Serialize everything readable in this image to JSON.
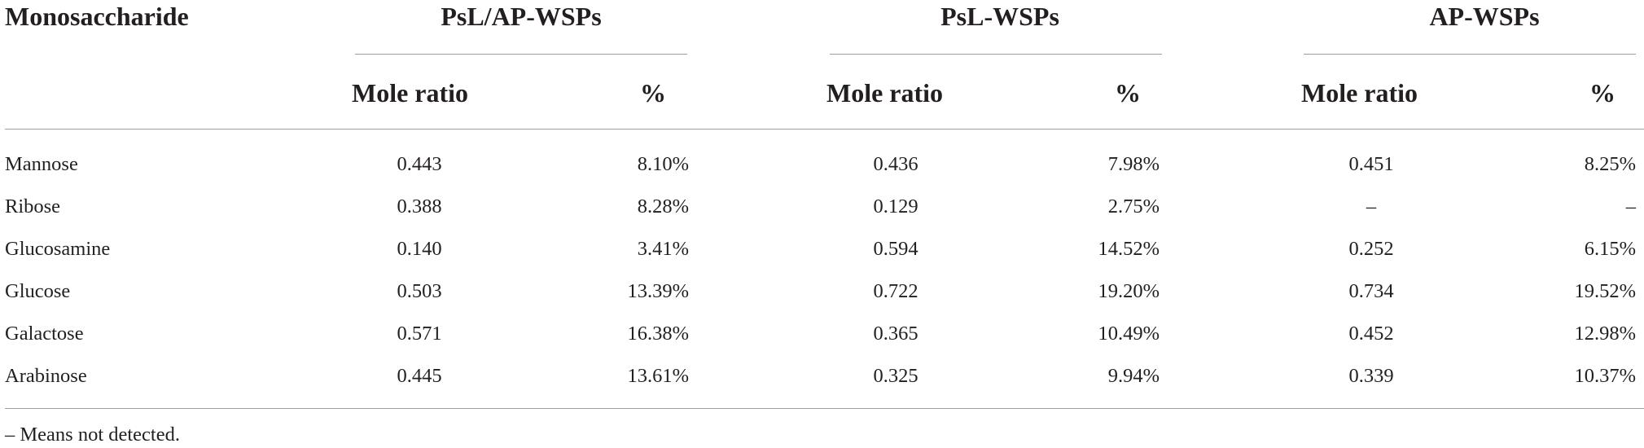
{
  "table": {
    "header": {
      "row_label": "Monosaccharide",
      "groups": [
        {
          "title": "PsL/AP-WSPs",
          "sub": [
            "Mole ratio",
            "%"
          ]
        },
        {
          "title": "PsL-WSPs",
          "sub": [
            "Mole ratio",
            "%"
          ]
        },
        {
          "title": "AP-WSPs",
          "sub": [
            "Mole ratio",
            "%"
          ]
        }
      ]
    },
    "rows": [
      {
        "name": "Mannose",
        "cells": [
          "0.443",
          "8.10%",
          "0.436",
          "7.98%",
          "0.451",
          "8.25%"
        ]
      },
      {
        "name": "Ribose",
        "cells": [
          "0.388",
          "8.28%",
          "0.129",
          "2.75%",
          "–",
          "–"
        ]
      },
      {
        "name": "Glucosamine",
        "cells": [
          "0.140",
          "3.41%",
          "0.594",
          "14.52%",
          "0.252",
          "6.15%"
        ]
      },
      {
        "name": "Glucose",
        "cells": [
          "0.503",
          "13.39%",
          "0.722",
          "19.20%",
          "0.734",
          "19.52%"
        ]
      },
      {
        "name": "Galactose",
        "cells": [
          "0.571",
          "16.38%",
          "0.365",
          "10.49%",
          "0.452",
          "12.98%"
        ]
      },
      {
        "name": "Arabinose",
        "cells": [
          "0.445",
          "13.61%",
          "0.325",
          "9.94%",
          "0.339",
          "10.37%"
        ]
      }
    ],
    "footnote": "– Means not detected."
  }
}
